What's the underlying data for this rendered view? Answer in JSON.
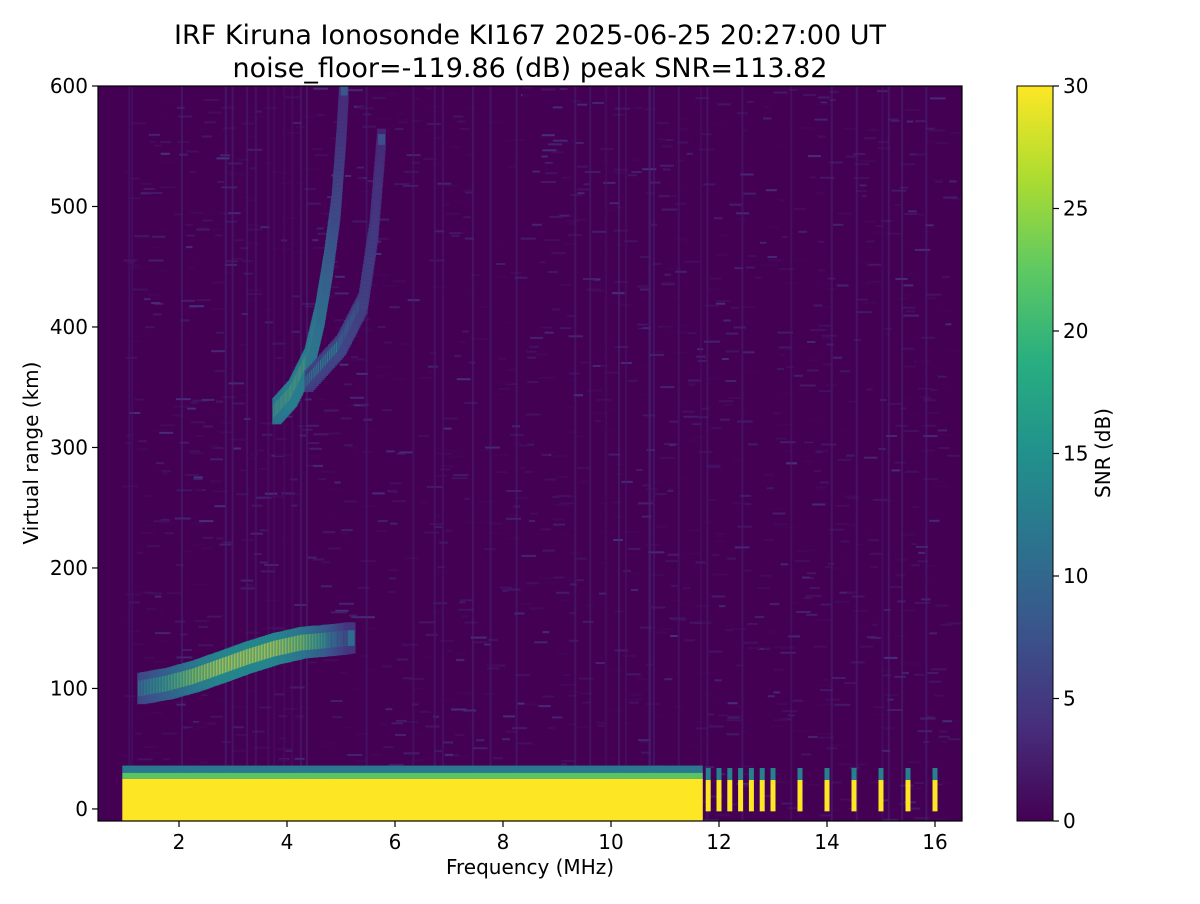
{
  "chart_data": {
    "type": "heatmap",
    "title": "IRF Kiruna Ionosonde KI167 2025-06-25 20:27:00  UT",
    "subtitle": "noise_floor=-119.86 (dB) peak SNR=113.82",
    "xlabel": "Frequency (MHz)",
    "ylabel": "Virtual range (km)",
    "xlim": [
      0.5,
      16.5
    ],
    "ylim": [
      -10,
      600
    ],
    "xticks": [
      2,
      4,
      6,
      8,
      10,
      12,
      14,
      16
    ],
    "yticks": [
      0,
      100,
      200,
      300,
      400,
      500,
      600
    ],
    "colorbar": {
      "label": "SNR (dB)",
      "range": [
        0,
        30
      ],
      "ticks": [
        0,
        5,
        10,
        15,
        20,
        25,
        30
      ],
      "colormap": "viridis"
    },
    "grid": false,
    "background_color": "#440154",
    "data_freq_range_mhz": [
      0.95,
      16.3
    ],
    "ground_clutter": {
      "continuous_to_mhz": 11.7,
      "height_km": [
        -10,
        30
      ],
      "spikes_mhz": [
        11.8,
        12.0,
        12.2,
        12.4,
        12.6,
        12.8,
        13.0,
        13.5,
        14.0,
        14.5,
        15.0,
        15.5,
        16.0
      ]
    },
    "e_layer_trace": {
      "points": [
        {
          "f": 1.3,
          "h": 100,
          "snr": 14
        },
        {
          "f": 1.8,
          "h": 104,
          "snr": 20
        },
        {
          "f": 2.3,
          "h": 110,
          "snr": 26
        },
        {
          "f": 2.8,
          "h": 118,
          "snr": 30
        },
        {
          "f": 3.3,
          "h": 126,
          "snr": 30
        },
        {
          "f": 3.8,
          "h": 133,
          "snr": 30
        },
        {
          "f": 4.3,
          "h": 138,
          "snr": 26
        },
        {
          "f": 4.8,
          "h": 140,
          "snr": 18
        },
        {
          "f": 5.2,
          "h": 142,
          "snr": 10
        }
      ]
    },
    "f_layer_o_trace": {
      "points": [
        {
          "f": 3.8,
          "h": 330,
          "snr": 25
        },
        {
          "f": 4.1,
          "h": 345,
          "snr": 28
        },
        {
          "f": 4.4,
          "h": 372,
          "snr": 27
        },
        {
          "f": 4.6,
          "h": 410,
          "snr": 24
        },
        {
          "f": 4.75,
          "h": 450,
          "snr": 20
        },
        {
          "f": 4.9,
          "h": 500,
          "snr": 14
        },
        {
          "f": 5.0,
          "h": 560,
          "snr": 10
        },
        {
          "f": 5.05,
          "h": 600,
          "snr": 8
        }
      ]
    },
    "f_layer_x_trace": {
      "points": [
        {
          "f": 4.4,
          "h": 355,
          "snr": 12
        },
        {
          "f": 5.0,
          "h": 385,
          "snr": 14
        },
        {
          "f": 5.4,
          "h": 420,
          "snr": 12
        },
        {
          "f": 5.6,
          "h": 480,
          "snr": 10
        },
        {
          "f": 5.75,
          "h": 560,
          "snr": 7
        }
      ]
    }
  }
}
